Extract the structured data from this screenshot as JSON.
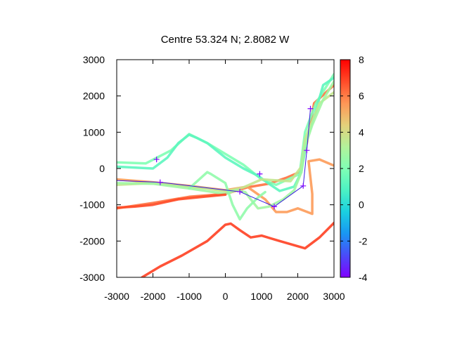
{
  "chart_data": {
    "type": "line",
    "title": "Centre 53.324 N; 2.8082  W",
    "xlabel": "",
    "ylabel": "",
    "xlim": [
      -3000,
      3000
    ],
    "ylim": [
      -3000,
      3000
    ],
    "x_ticks": [
      -3000,
      -2000,
      -1000,
      0,
      1000,
      2000,
      3000
    ],
    "y_ticks": [
      -3000,
      -2000,
      -1000,
      0,
      1000,
      2000,
      3000
    ],
    "colorbar": {
      "range": [
        -4,
        8
      ],
      "ticks": [
        -4,
        -2,
        0,
        2,
        4,
        6,
        8
      ],
      "palette": [
        "#8000ff",
        "#4a4bf8",
        "#1996f3",
        "#1ad0e0",
        "#4cf2c4",
        "#80ffb4",
        "#b3f29a",
        "#e4d07a",
        "#ff9656",
        "#ff4b28",
        "#ff0000"
      ]
    },
    "grid": false,
    "legend": "none",
    "series": [
      {
        "values": [
          [
            -3000,
            -1100
          ],
          [
            -2000,
            -950
          ],
          [
            -1000,
            -780
          ],
          [
            0,
            -700
          ],
          [
            600,
            -520
          ],
          [
            1200,
            -420
          ],
          [
            1700,
            -250
          ],
          [
            2050,
            -100
          ],
          [
            2250,
            700
          ],
          [
            2450,
            1800
          ],
          [
            3000,
            2300
          ]
        ],
        "color_value": 6.2
      },
      {
        "values": [
          [
            -3000,
            170
          ],
          [
            -2200,
            140
          ],
          [
            -1500,
            500
          ],
          [
            -1000,
            950
          ],
          [
            -500,
            700
          ],
          [
            500,
            100
          ],
          [
            1000,
            -300
          ],
          [
            1400,
            -450
          ],
          [
            2050,
            -150
          ],
          [
            2200,
            1000
          ],
          [
            2500,
            1800
          ],
          [
            3000,
            2600
          ]
        ],
        "color_value": 2.0
      },
      {
        "values": [
          [
            -3000,
            50
          ],
          [
            -2000,
            0
          ],
          [
            -1600,
            300
          ],
          [
            -1300,
            700
          ],
          [
            -1000,
            930
          ],
          [
            -800,
            850
          ],
          [
            -500,
            700
          ],
          [
            0,
            300
          ],
          [
            500,
            0
          ],
          [
            900,
            -200
          ],
          [
            1200,
            -420
          ],
          [
            1500,
            -620
          ],
          [
            1900,
            -500
          ],
          [
            2100,
            -100
          ],
          [
            2250,
            800
          ],
          [
            2500,
            1600
          ],
          [
            2700,
            2300
          ],
          [
            3000,
            2500
          ]
        ],
        "color_value": 1.2
      },
      {
        "values": [
          [
            -3000,
            -300
          ],
          [
            -2000,
            -380
          ],
          [
            -1000,
            -480
          ],
          [
            0,
            -600
          ],
          [
            600,
            -500
          ],
          [
            1100,
            -850
          ],
          [
            1400,
            -1200
          ],
          [
            1700,
            -1200
          ],
          [
            2000,
            -1100
          ],
          [
            2400,
            -1250
          ],
          [
            2400,
            -700
          ],
          [
            2300,
            200
          ],
          [
            2600,
            250
          ],
          [
            3000,
            80
          ]
        ],
        "color_value": 5.5
      },
      {
        "values": [
          [
            -2300,
            -3000
          ],
          [
            -1800,
            -2700
          ],
          [
            -1200,
            -2400
          ],
          [
            -500,
            -2000
          ],
          [
            0,
            -1550
          ],
          [
            150,
            -1520
          ],
          [
            400,
            -1700
          ],
          [
            700,
            -1900
          ],
          [
            1000,
            -1850
          ],
          [
            1500,
            -2000
          ],
          [
            2200,
            -2200
          ],
          [
            2600,
            -1900
          ],
          [
            3000,
            -1500
          ]
        ],
        "color_value": 7.0
      },
      {
        "values": [
          [
            -3000,
            -450
          ],
          [
            -2000,
            -400
          ],
          [
            -1000,
            -500
          ],
          [
            -500,
            -550
          ],
          [
            0,
            -630
          ],
          [
            500,
            -520
          ],
          [
            1000,
            -300
          ],
          [
            1800,
            -350
          ],
          [
            2100,
            50
          ],
          [
            2200,
            800
          ],
          [
            2400,
            1300
          ],
          [
            2600,
            1800
          ],
          [
            3000,
            2100
          ]
        ],
        "color_value": 3.6
      },
      {
        "values": [
          [
            -3000,
            -400
          ],
          [
            -2000,
            -420
          ],
          [
            -1000,
            -550
          ],
          [
            0,
            -700
          ],
          [
            300,
            -600
          ],
          [
            550,
            -650
          ],
          [
            700,
            -850
          ],
          [
            900,
            -1100
          ],
          [
            1200,
            -1050
          ],
          [
            1600,
            -850
          ],
          [
            1900,
            -600
          ],
          [
            2100,
            -100
          ],
          [
            2200,
            600
          ],
          [
            2400,
            1200
          ],
          [
            2700,
            1900
          ],
          [
            3000,
            2400
          ]
        ],
        "color_value": 2.8
      },
      {
        "values": [
          [
            -3000,
            -1080
          ],
          [
            -2500,
            -1050
          ],
          [
            -2000,
            -1000
          ],
          [
            -1300,
            -850
          ],
          [
            -600,
            -780
          ],
          [
            0,
            -720
          ]
        ],
        "color_value": 6.8
      },
      {
        "values": [
          [
            -1000,
            -550
          ],
          [
            -500,
            -100
          ],
          [
            -400,
            -150
          ],
          [
            0,
            -400
          ],
          [
            200,
            -1000
          ],
          [
            400,
            -1400
          ],
          [
            600,
            -1100
          ],
          [
            900,
            -800
          ],
          [
            1100,
            -650
          ]
        ],
        "color_value": 2.4
      }
    ],
    "track": {
      "color": "#3a1ee0",
      "values": [
        [
          -3000,
          -330
        ],
        [
          -1800,
          -380
        ],
        [
          400,
          -640
        ],
        [
          1350,
          -1050
        ],
        [
          2150,
          -480
        ],
        [
          2250,
          500
        ],
        [
          2350,
          1650
        ]
      ]
    },
    "markers": {
      "color": "#8000ff",
      "values": [
        [
          -1900,
          250
        ],
        [
          -1800,
          -380
        ],
        [
          400,
          -640
        ],
        [
          950,
          -150
        ],
        [
          1350,
          -1050
        ],
        [
          2150,
          -480
        ],
        [
          2250,
          500
        ],
        [
          2350,
          1650
        ]
      ]
    }
  }
}
